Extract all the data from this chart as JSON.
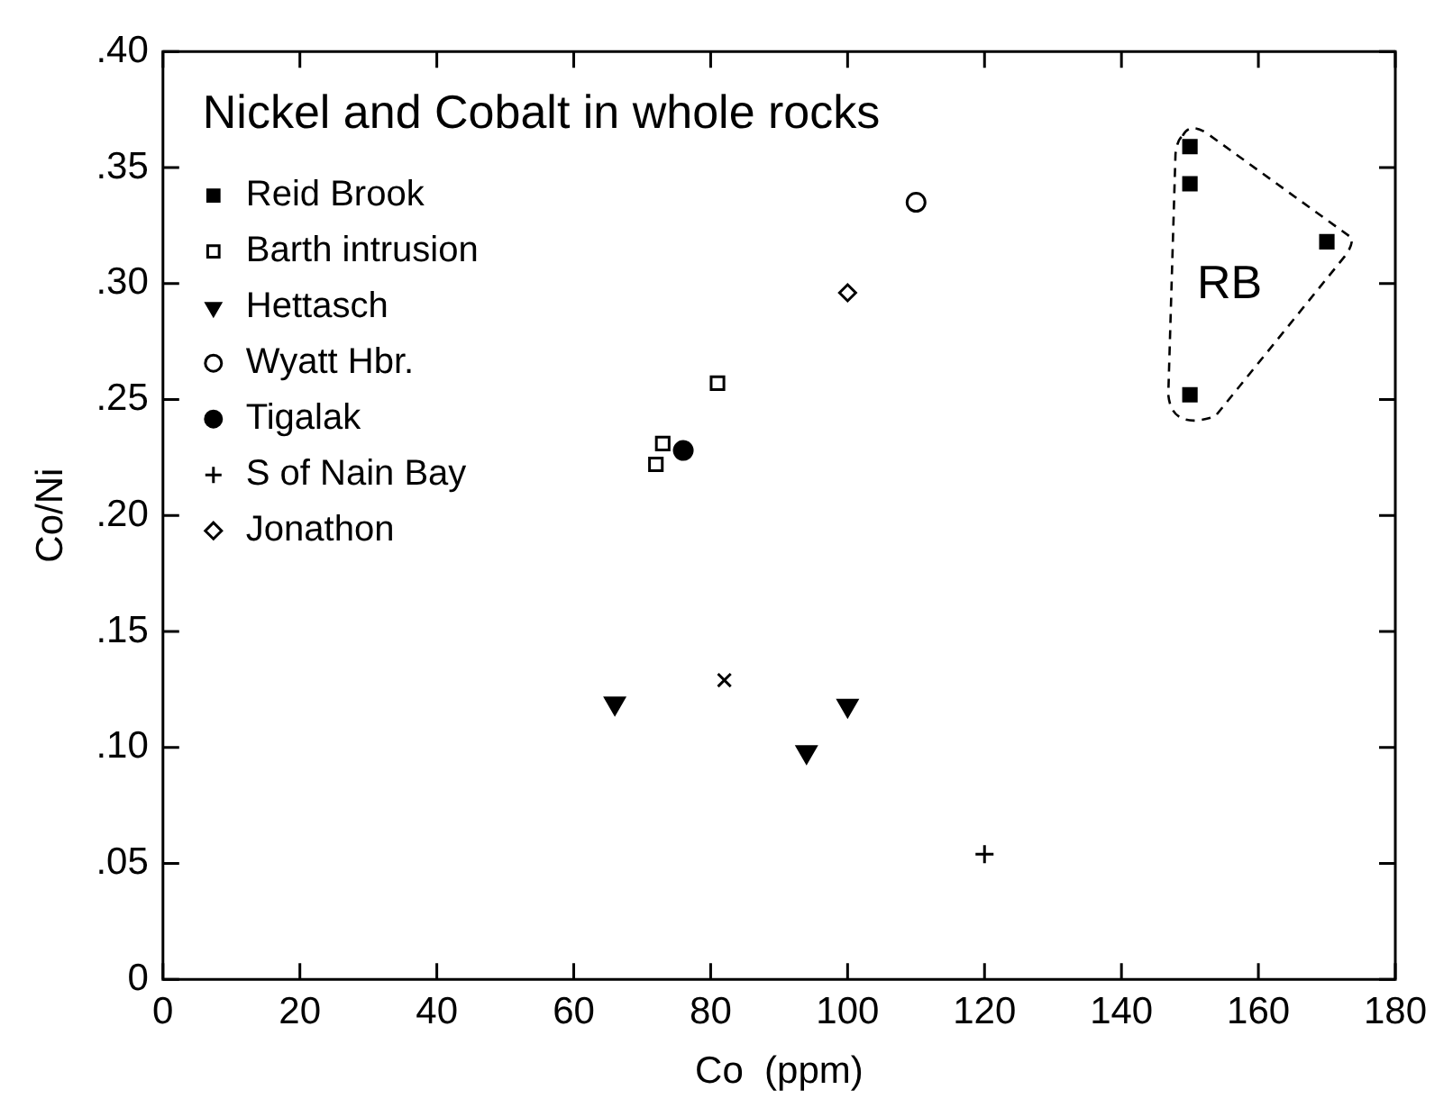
{
  "chart_data": {
    "type": "scatter",
    "title": "Nickel and Cobalt in whole rocks",
    "xlabel": "Co  (ppm)",
    "ylabel": "Co/Ni",
    "xlim": [
      0,
      180
    ],
    "xticks": [
      0,
      20,
      40,
      60,
      80,
      100,
      120,
      140,
      160,
      180
    ],
    "ylim": [
      0,
      0.4
    ],
    "yticks": [
      {
        "value": 0,
        "label": "0"
      },
      {
        "value": 0.05,
        "label": ".05"
      },
      {
        "value": 0.1,
        "label": ".10"
      },
      {
        "value": 0.15,
        "label": ".15"
      },
      {
        "value": 0.2,
        "label": ".20"
      },
      {
        "value": 0.25,
        "label": ".25"
      },
      {
        "value": 0.3,
        "label": ".30"
      },
      {
        "value": 0.35,
        "label": ".35"
      },
      {
        "value": 0.4,
        "label": ".40"
      }
    ],
    "legend": "top left",
    "grid": false,
    "annotations": [
      "RB"
    ],
    "series": [
      {
        "name": "Reid Brook",
        "color": "#000000",
        "marker": "square",
        "x": [
          150,
          150,
          170,
          150
        ],
        "values": [
          0.359,
          0.343,
          0.318,
          0.252
        ]
      },
      {
        "name": "Barth intrusion",
        "color": "#000000",
        "marker": "square-open",
        "x": [
          72,
          73,
          81
        ],
        "values": [
          0.222,
          0.231,
          0.257
        ]
      },
      {
        "name": "Hettasch",
        "color": "#000000",
        "marker": "triangle",
        "x": [
          66,
          94,
          100
        ],
        "values": [
          0.119,
          0.098,
          0.118
        ]
      },
      {
        "name": "Wyatt Hbr.",
        "color": "#000000",
        "marker": "circle-open",
        "x": [
          110
        ],
        "values": [
          0.335
        ]
      },
      {
        "name": "Tigalak",
        "color": "#000000",
        "marker": "circle",
        "x": [
          76
        ],
        "values": [
          0.228
        ]
      },
      {
        "name": "S of Nain Bay",
        "color": "#000000",
        "marker": "cross",
        "x": [
          120
        ],
        "values": [
          0.054
        ]
      },
      {
        "name": "Jonathon",
        "color": "#000000",
        "marker": "diamond-open",
        "x": [
          100
        ],
        "values": [
          0.296
        ]
      },
      {
        "color": "#000000",
        "marker": "x",
        "x": [
          82
        ],
        "values": [
          0.129
        ]
      }
    ]
  }
}
